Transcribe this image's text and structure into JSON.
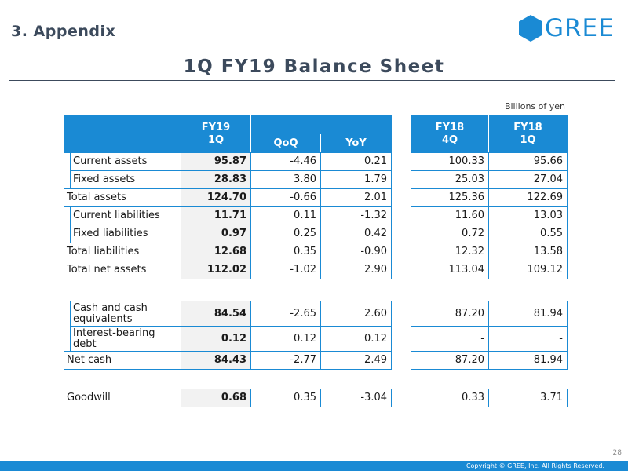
{
  "header": {
    "section": "3. Appendix",
    "title": "1Q FY19 Balance Sheet",
    "logo_text": "GREE",
    "units": "Billions of yen"
  },
  "brand": {
    "accent": "#1a8ad4",
    "title_color": "#3c4a5c"
  },
  "left_headers": {
    "fy19_line1": "FY19",
    "fy19_line2": "1Q",
    "qoq": "QoQ",
    "yoy": "YoY"
  },
  "right_headers": {
    "fy18_4q_line1": "FY18",
    "fy18_4q_line2": "4Q",
    "fy18_1q_line1": "FY18",
    "fy18_1q_line2": "1Q"
  },
  "balance_rows": [
    {
      "label": "Current assets",
      "fy19_1q": "95.87",
      "qoq": "-4.46",
      "yoy": "0.21",
      "fy18_4q": "100.33",
      "fy18_1q": "95.66"
    },
    {
      "label": "Fixed assets",
      "fy19_1q": "28.83",
      "qoq": "3.80",
      "yoy": "1.79",
      "fy18_4q": "25.03",
      "fy18_1q": "27.04"
    },
    {
      "label": "Total assets",
      "fy19_1q": "124.70",
      "qoq": "-0.66",
      "yoy": "2.01",
      "fy18_4q": "125.36",
      "fy18_1q": "122.69"
    },
    {
      "label": "Current liabilities",
      "fy19_1q": "11.71",
      "qoq": "0.11",
      "yoy": "-1.32",
      "fy18_4q": "11.60",
      "fy18_1q": "13.03"
    },
    {
      "label": "Fixed liabilities",
      "fy19_1q": "0.97",
      "qoq": "0.25",
      "yoy": "0.42",
      "fy18_4q": "0.72",
      "fy18_1q": "0.55"
    },
    {
      "label": "Total liabilities",
      "fy19_1q": "12.68",
      "qoq": "0.35",
      "yoy": "-0.90",
      "fy18_4q": "12.32",
      "fy18_1q": "13.58"
    },
    {
      "label": "Total net assets",
      "fy19_1q": "112.02",
      "qoq": "-1.02",
      "yoy": "2.90",
      "fy18_4q": "113.04",
      "fy18_1q": "109.12"
    }
  ],
  "cash_rows": [
    {
      "label": "Cash and cash equivalents –",
      "fy19_1q": "84.54",
      "qoq": "-2.65",
      "yoy": "2.60",
      "fy18_4q": "87.20",
      "fy18_1q": "81.94"
    },
    {
      "label": " Interest-bearing debt",
      "fy19_1q": "0.12",
      "qoq": "0.12",
      "yoy": "0.12",
      "fy18_4q": "-",
      "fy18_1q": "-"
    },
    {
      "label": "Net cash",
      "fy19_1q": "84.43",
      "qoq": "-2.77",
      "yoy": "2.49",
      "fy18_4q": "87.20",
      "fy18_1q": "81.94"
    }
  ],
  "goodwill_row": {
    "label": "Goodwill",
    "fy19_1q": "0.68",
    "qoq": "0.35",
    "yoy": "-3.04",
    "fy18_4q": "0.33",
    "fy18_1q": "3.71"
  },
  "footer": {
    "copyright": "Copyright © GREE, Inc. All Rights Reserved.",
    "page_number": "28"
  }
}
